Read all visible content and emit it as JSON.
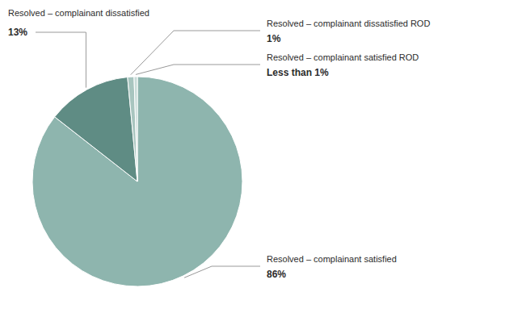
{
  "chart_data": {
    "type": "pie",
    "categories": [
      "Resolved – complainant satisfied",
      "Resolved – complainant dissatisfied",
      "Resolved – complainant dissatisfied ROD",
      "Resolved – complainant satisfied ROD"
    ],
    "values": [
      86,
      13,
      1,
      0.5
    ],
    "value_labels": [
      "86%",
      "13%",
      "1%",
      "Less than 1%"
    ],
    "data_labels": true,
    "colors": [
      "#8eb5ae",
      "#5f8c84",
      "#a8c5bf",
      "#c8dbd8"
    ]
  }
}
